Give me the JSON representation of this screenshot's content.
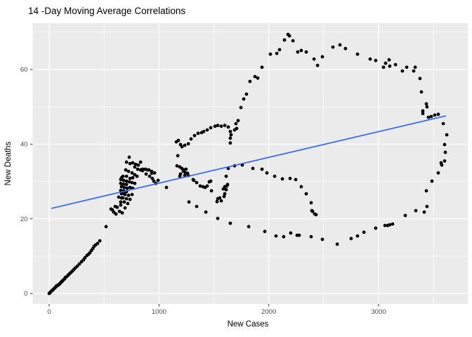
{
  "title": "14 -Day Moving Average Correlations",
  "colors": {
    "background": "#FFFFFF",
    "panel_bg": "#EBEBEB",
    "grid": "#FFFFFF",
    "tick_mark": "#333333",
    "tick_label": "#4D4D4D",
    "axis_title": "#000000",
    "point": "#000000",
    "smooth_line": "#3366FF"
  },
  "chart_data": {
    "type": "scatter",
    "title": "14 -Day Moving Average Correlations",
    "xlabel": "New Cases",
    "ylabel": "New Deaths",
    "legend": false,
    "grid": true,
    "x_axis": {
      "ticks": [
        0,
        1000,
        2000,
        3000
      ],
      "minor_ticks": [
        500,
        1500,
        2500,
        3500
      ],
      "range": [
        -150,
        3810
      ]
    },
    "y_axis": {
      "ticks": [
        0,
        20,
        40,
        60
      ],
      "minor_ticks": [
        10,
        30,
        50,
        70
      ],
      "range": [
        -3.4,
        72.4
      ]
    },
    "trend_line": {
      "model": "linear",
      "color": "#3366FF",
      "endpoints": [
        [
          20,
          22.8
        ],
        [
          3615,
          47.6
        ]
      ]
    },
    "points": [
      [
        0,
        0
      ],
      [
        6,
        0.2
      ],
      [
        13,
        0.4
      ],
      [
        19,
        0.6
      ],
      [
        26,
        0.8
      ],
      [
        32,
        0.9
      ],
      [
        38,
        1.1
      ],
      [
        45,
        1.3
      ],
      [
        51,
        1.5
      ],
      [
        58,
        1.7
      ],
      [
        64,
        1.9
      ],
      [
        70,
        2.1
      ],
      [
        77,
        2.1
      ],
      [
        83,
        2.3
      ],
      [
        90,
        2.4
      ],
      [
        96,
        2.6
      ],
      [
        102,
        2.8
      ],
      [
        109,
        3.0
      ],
      [
        115,
        3.2
      ],
      [
        122,
        3.4
      ],
      [
        128,
        3.6
      ],
      [
        141,
        3.9
      ],
      [
        147,
        4.3
      ],
      [
        160,
        4.5
      ],
      [
        173,
        4.9
      ],
      [
        179,
        5.1
      ],
      [
        192,
        5.5
      ],
      [
        198,
        5.6
      ],
      [
        211,
        6.0
      ],
      [
        224,
        6.4
      ],
      [
        237,
        6.8
      ],
      [
        256,
        7.3
      ],
      [
        275,
        7.9
      ],
      [
        294,
        8.5
      ],
      [
        313,
        9.0
      ],
      [
        326,
        9.6
      ],
      [
        345,
        10.2
      ],
      [
        358,
        10.5
      ],
      [
        371,
        10.9
      ],
      [
        384,
        11.5
      ],
      [
        397,
        12.0
      ],
      [
        409,
        12.6
      ],
      [
        422,
        13.0
      ],
      [
        441,
        13.4
      ],
      [
        461,
        14.1
      ],
      [
        518,
        17.9
      ],
      [
        563,
        22.6
      ],
      [
        576,
        22.4
      ],
      [
        588,
        21.8
      ],
      [
        601,
        23.3
      ],
      [
        608,
        21.3
      ],
      [
        620,
        23.1
      ],
      [
        640,
        22.0
      ],
      [
        665,
        21.6
      ],
      [
        652,
        24.5
      ],
      [
        659,
        25.6
      ],
      [
        684,
        26.7
      ],
      [
        729,
        36.5
      ],
      [
        704,
        35.2
      ],
      [
        736,
        34.8
      ],
      [
        761,
        35.0
      ],
      [
        787,
        34.6
      ],
      [
        812,
        34.4
      ],
      [
        780,
        33.9
      ],
      [
        806,
        33.3
      ],
      [
        832,
        33.1
      ],
      [
        851,
        32.9
      ],
      [
        697,
        33.1
      ],
      [
        723,
        32.7
      ],
      [
        755,
        32.3
      ],
      [
        780,
        31.8
      ],
      [
        876,
        33.3
      ],
      [
        908,
        33.1
      ],
      [
        934,
        32.7
      ],
      [
        960,
        32.3
      ],
      [
        800,
        31.4
      ],
      [
        761,
        31.0
      ],
      [
        736,
        30.8
      ],
      [
        704,
        31.4
      ],
      [
        672,
        31.4
      ],
      [
        659,
        31.0
      ],
      [
        652,
        30.5
      ],
      [
        678,
        30.3
      ],
      [
        704,
        30.1
      ],
      [
        729,
        29.9
      ],
      [
        755,
        29.7
      ],
      [
        780,
        29.5
      ],
      [
        652,
        29.5
      ],
      [
        678,
        29.3
      ],
      [
        704,
        29.2
      ],
      [
        659,
        28.6
      ],
      [
        684,
        28.4
      ],
      [
        710,
        28.2
      ],
      [
        736,
        28.4
      ],
      [
        761,
        28.2
      ],
      [
        652,
        27.6
      ],
      [
        678,
        27.5
      ],
      [
        704,
        27.3
      ],
      [
        659,
        26.7
      ],
      [
        691,
        26.5
      ],
      [
        723,
        26.3
      ],
      [
        755,
        26.5
      ],
      [
        633,
        25.8
      ],
      [
        672,
        25.6
      ],
      [
        704,
        25.4
      ],
      [
        736,
        25.2
      ],
      [
        684,
        24.5
      ],
      [
        716,
        24.1
      ],
      [
        652,
        23.7
      ],
      [
        691,
        22.9
      ],
      [
        832,
        35.2
      ],
      [
        851,
        33.3
      ],
      [
        883,
        32.0
      ],
      [
        896,
        33.1
      ],
      [
        915,
        31.4
      ],
      [
        934,
        32.2
      ],
      [
        940,
        30.8
      ],
      [
        953,
        30.1
      ],
      [
        972,
        29.5
      ],
      [
        992,
        30.3
      ],
      [
        1068,
        28.4
      ],
      [
        1158,
        40.6
      ],
      [
        1177,
        41.0
      ],
      [
        1196,
        39.9
      ],
      [
        1209,
        39.3
      ],
      [
        1235,
        39.7
      ],
      [
        1267,
        40.1
      ],
      [
        1171,
        36.9
      ],
      [
        1164,
        34.2
      ],
      [
        1190,
        33.9
      ],
      [
        1209,
        33.5
      ],
      [
        1228,
        33.1
      ],
      [
        1247,
        33.3
      ],
      [
        1222,
        32.7
      ],
      [
        1241,
        32.3
      ],
      [
        1260,
        32.2
      ],
      [
        1267,
        31.6
      ],
      [
        1235,
        31.6
      ],
      [
        1196,
        32.0
      ],
      [
        1190,
        31.4
      ],
      [
        1318,
        30.3
      ],
      [
        1311,
        30.5
      ],
      [
        1343,
        29.7
      ],
      [
        1375,
        28.8
      ],
      [
        1401,
        28.6
      ],
      [
        1420,
        28.4
      ],
      [
        1439,
        28.8
      ],
      [
        1458,
        29.9
      ],
      [
        1471,
        30.1
      ],
      [
        1478,
        27.5
      ],
      [
        1529,
        24.6
      ],
      [
        1535,
        25.4
      ],
      [
        1554,
        25.6
      ],
      [
        1567,
        24.8
      ],
      [
        1593,
        26.0
      ],
      [
        1599,
        26.7
      ],
      [
        1612,
        27.8
      ],
      [
        1618,
        28.8
      ],
      [
        1625,
        29.2
      ],
      [
        1599,
        28.6
      ],
      [
        1586,
        28.0
      ],
      [
        1273,
        24.5
      ],
      [
        1343,
        23.3
      ],
      [
        1427,
        21.8
      ],
      [
        1292,
        41.4
      ],
      [
        1324,
        42.3
      ],
      [
        1356,
        42.9
      ],
      [
        1388,
        43.1
      ],
      [
        1407,
        43.4
      ],
      [
        1439,
        43.8
      ],
      [
        1471,
        44.4
      ],
      [
        1510,
        44.8
      ],
      [
        1535,
        45.0
      ],
      [
        1567,
        44.8
      ],
      [
        1599,
        45.0
      ],
      [
        1631,
        44.6
      ],
      [
        1650,
        43.4
      ],
      [
        1657,
        42.5
      ],
      [
        1650,
        41.6
      ],
      [
        1650,
        40.3
      ],
      [
        1689,
        43.8
      ],
      [
        1701,
        45.5
      ],
      [
        1708,
        44.2
      ],
      [
        1721,
        46.3
      ],
      [
        1746,
        49.8
      ],
      [
        1772,
        52.1
      ],
      [
        1797,
        53.4
      ],
      [
        1829,
        56.8
      ],
      [
        1874,
        58.1
      ],
      [
        1900,
        57.7
      ],
      [
        1938,
        60.6
      ],
      [
        2015,
        64.1
      ],
      [
        2073,
        64.3
      ],
      [
        2098,
        65.3
      ],
      [
        2143,
        67.9
      ],
      [
        2175,
        69.4
      ],
      [
        2188,
        69.0
      ],
      [
        2220,
        67.7
      ],
      [
        2264,
        64.7
      ],
      [
        2296,
        65.1
      ],
      [
        2341,
        64.7
      ],
      [
        2412,
        62.8
      ],
      [
        2444,
        61.1
      ],
      [
        2488,
        63.4
      ],
      [
        2584,
        66.0
      ],
      [
        2648,
        66.6
      ],
      [
        2699,
        65.6
      ],
      [
        2808,
        64.1
      ],
      [
        2923,
        62.8
      ],
      [
        2974,
        62.4
      ],
      [
        3045,
        60.6
      ],
      [
        3064,
        61.7
      ],
      [
        3096,
        62.6
      ],
      [
        3102,
        60.9
      ],
      [
        3154,
        61.3
      ],
      [
        3217,
        59.6
      ],
      [
        3256,
        60.6
      ],
      [
        3320,
        59.6
      ],
      [
        3333,
        60.6
      ],
      [
        3377,
        57.6
      ],
      [
        3390,
        54.0
      ],
      [
        3435,
        50.8
      ],
      [
        3441,
        50.0
      ],
      [
        3403,
        48.9
      ],
      [
        3403,
        48.2
      ],
      [
        3454,
        47.2
      ],
      [
        3480,
        47.4
      ],
      [
        3512,
        47.8
      ],
      [
        3544,
        48.0
      ],
      [
        3589,
        45.5
      ],
      [
        3621,
        42.5
      ],
      [
        3601,
        39.9
      ],
      [
        3608,
        37.8
      ],
      [
        3601,
        35.5
      ],
      [
        3569,
        35.0
      ],
      [
        3576,
        34.4
      ],
      [
        3544,
        32.3
      ],
      [
        3486,
        30.1
      ],
      [
        3435,
        27.5
      ],
      [
        3441,
        23.3
      ],
      [
        3416,
        21.8
      ],
      [
        3339,
        22.2
      ],
      [
        3243,
        20.9
      ],
      [
        3128,
        18.6
      ],
      [
        3102,
        18.4
      ],
      [
        3083,
        18.2
      ],
      [
        3058,
        18.2
      ],
      [
        2974,
        17.5
      ],
      [
        2866,
        16.4
      ],
      [
        2808,
        15.4
      ],
      [
        2750,
        14.7
      ],
      [
        2623,
        13.2
      ],
      [
        2488,
        14.5
      ],
      [
        2386,
        15.2
      ],
      [
        2277,
        15.6
      ],
      [
        2258,
        15.6
      ],
      [
        2200,
        16.2
      ],
      [
        2136,
        15.2
      ],
      [
        2066,
        15.4
      ],
      [
        1964,
        16.6
      ],
      [
        1817,
        17.9
      ],
      [
        1650,
        18.8
      ],
      [
        1535,
        20.1
      ],
      [
        1612,
        31.4
      ],
      [
        1631,
        33.5
      ],
      [
        1689,
        34.2
      ],
      [
        1759,
        34.4
      ],
      [
        1855,
        33.5
      ],
      [
        1938,
        33.3
      ],
      [
        1983,
        32.3
      ],
      [
        2053,
        31.4
      ],
      [
        2124,
        30.7
      ],
      [
        2194,
        30.8
      ],
      [
        2245,
        30.5
      ],
      [
        2296,
        28.6
      ],
      [
        2341,
        26.7
      ],
      [
        2386,
        24.3
      ],
      [
        2392,
        22.2
      ],
      [
        2399,
        22.0
      ],
      [
        2418,
        21.3
      ],
      [
        2431,
        21.1
      ]
    ]
  }
}
